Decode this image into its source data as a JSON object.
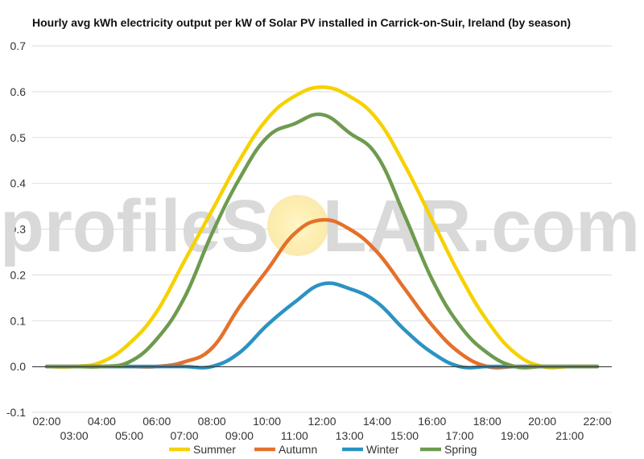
{
  "chart_data": {
    "type": "line",
    "title": "Hourly avg kWh electricity output per kW of Solar PV installed in Carrick-on-Suir, Ireland (by season)",
    "xlabel": "",
    "ylabel": "",
    "x_labels_upper": [
      "02:00",
      "04:00",
      "06:00",
      "08:00",
      "10:00",
      "12:00",
      "14:00",
      "16:00",
      "18:00",
      "20:00",
      "22:00"
    ],
    "x_labels_lower": [
      "03:00",
      "05:00",
      "07:00",
      "09:00",
      "11:00",
      "13:00",
      "15:00",
      "17:00",
      "19:00",
      "21:00"
    ],
    "x": [
      2,
      3,
      4,
      5,
      6,
      7,
      8,
      9,
      10,
      11,
      12,
      13,
      14,
      15,
      16,
      17,
      18,
      19,
      20,
      21,
      22
    ],
    "ylim": [
      -0.1,
      0.7
    ],
    "yticks": [
      "-0.1",
      "0.0",
      "0.1",
      "0.2",
      "0.3",
      "0.4",
      "0.5",
      "0.6",
      "0.7"
    ],
    "grid": true,
    "legend_position": "bottom",
    "series": [
      {
        "name": "Summer",
        "color": "#f6d100",
        "values": [
          0.0,
          0.0,
          0.01,
          0.05,
          0.12,
          0.23,
          0.34,
          0.45,
          0.54,
          0.59,
          0.61,
          0.59,
          0.54,
          0.44,
          0.32,
          0.2,
          0.1,
          0.03,
          0.0,
          0.0,
          0.0
        ]
      },
      {
        "name": "Autumn",
        "color": "#e5702a",
        "values": [
          0.0,
          0.0,
          0.0,
          0.0,
          0.0,
          0.01,
          0.04,
          0.13,
          0.21,
          0.29,
          0.32,
          0.3,
          0.25,
          0.17,
          0.09,
          0.03,
          0.0,
          0.0,
          0.0,
          0.0,
          0.0
        ]
      },
      {
        "name": "Winter",
        "color": "#2b93c2",
        "values": [
          0.0,
          0.0,
          0.0,
          0.0,
          0.0,
          0.0,
          0.0,
          0.03,
          0.09,
          0.14,
          0.18,
          0.17,
          0.14,
          0.08,
          0.03,
          0.0,
          0.0,
          0.0,
          0.0,
          0.0,
          0.0
        ]
      },
      {
        "name": "Spring",
        "color": "#6e9b4f",
        "values": [
          0.0,
          0.0,
          0.0,
          0.01,
          0.06,
          0.15,
          0.29,
          0.41,
          0.5,
          0.53,
          0.55,
          0.51,
          0.46,
          0.33,
          0.19,
          0.09,
          0.03,
          0.0,
          0.0,
          0.0,
          0.0
        ]
      }
    ]
  },
  "watermark": {
    "part1": "profileS",
    "part2": "LAR.com"
  }
}
